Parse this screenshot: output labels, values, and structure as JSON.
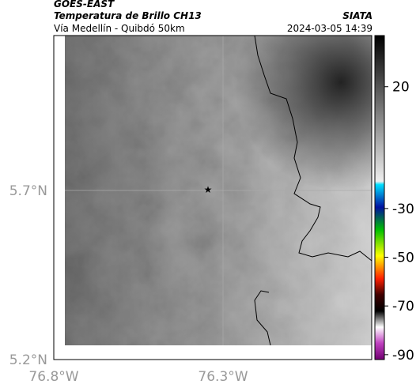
{
  "header": {
    "satellite": "GOES-EAST",
    "product": "Temperatura de Brillo CH13",
    "region": "Vía Medellín - Quibdó 50km",
    "agency": "SIATA",
    "datetime": "2024-03-05 14:39"
  },
  "map": {
    "lat_labels": [
      "5.7°N",
      "5.2°N"
    ],
    "lon_labels": [
      "76.8°W",
      "76.3°W"
    ]
  },
  "colorbar": {
    "lim": [
      41,
      -92
    ],
    "ticks": [
      20,
      -30,
      -50,
      -70,
      -90
    ]
  }
}
